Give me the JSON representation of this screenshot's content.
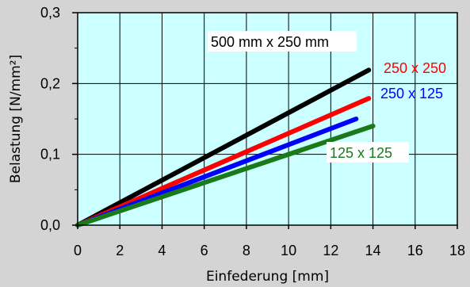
{
  "chart_data": {
    "type": "line",
    "xlabel": "Einfederung [mm]",
    "ylabel": "Belastung [N/mm²]",
    "xlim": [
      0,
      18
    ],
    "ylim": [
      0,
      0.3
    ],
    "x_ticks": [
      "0",
      "2",
      "4",
      "6",
      "8",
      "10",
      "12",
      "14",
      "16",
      "18"
    ],
    "y_ticks": [
      "0,0",
      "0,1",
      "0,2",
      "0,3"
    ],
    "grid": true,
    "plot_background": "#ccffff",
    "series": [
      {
        "name": "500 mm x 250 mm",
        "color": "#000000",
        "x": [
          0,
          13.8
        ],
        "y": [
          0,
          0.219
        ]
      },
      {
        "name": "250 x 250",
        "color": "#ff0000",
        "x": [
          0,
          13.8
        ],
        "y": [
          0,
          0.179
        ]
      },
      {
        "name": "250 x 125",
        "color": "#0000ff",
        "x": [
          0,
          13.2
        ],
        "y": [
          0,
          0.15
        ]
      },
      {
        "name": "125 x 125",
        "color": "#1a7a1a",
        "x": [
          0,
          14.0
        ],
        "y": [
          0,
          0.14
        ]
      }
    ]
  }
}
